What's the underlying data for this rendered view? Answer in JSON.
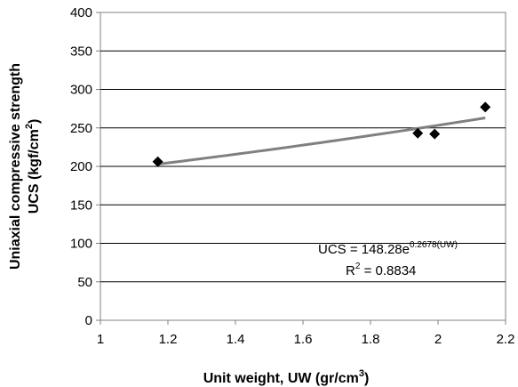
{
  "chart_data": {
    "type": "scatter",
    "title": "",
    "xlabel_main": "Unit weight, UW (gr/cm",
    "xlabel_sup": "3",
    "xlabel_end": ")",
    "ylabel_line1": "Uniaxial compressive strength",
    "ylabel_line2_main": "UCS (kgf/cm",
    "ylabel_line2_sup": "2",
    "ylabel_line2_end": ")",
    "xlim": [
      1,
      2.2
    ],
    "ylim": [
      0,
      400
    ],
    "xticks": [
      1,
      1.2,
      1.4,
      1.6,
      1.8,
      2,
      2.2
    ],
    "xtick_labels": [
      "1",
      "1.2",
      "1.4",
      "1.6",
      "1.8",
      "2",
      "2.2"
    ],
    "yticks": [
      0,
      50,
      100,
      150,
      200,
      250,
      300,
      350,
      400
    ],
    "ytick_labels": [
      "0",
      "50",
      "100",
      "150",
      "200",
      "250",
      "300",
      "350",
      "400"
    ],
    "grid": "horizontal",
    "points": [
      {
        "x": 1.17,
        "y": 206
      },
      {
        "x": 1.94,
        "y": 243
      },
      {
        "x": 1.99,
        "y": 242
      },
      {
        "x": 2.14,
        "y": 277
      }
    ],
    "trendline": {
      "type": "exponential",
      "a": 148.28,
      "b": 0.2678,
      "x_range": [
        1.17,
        2.14
      ]
    },
    "equation": {
      "main": "UCS = 148.28e",
      "sup": "0.2678(UW)"
    },
    "r_squared": {
      "main": "R",
      "sup": "2",
      "rest": " = 0.8834"
    },
    "colors": {
      "marker": "#000000",
      "trendline": "#808080",
      "gridline": "#000000",
      "axis": "#808080"
    }
  }
}
